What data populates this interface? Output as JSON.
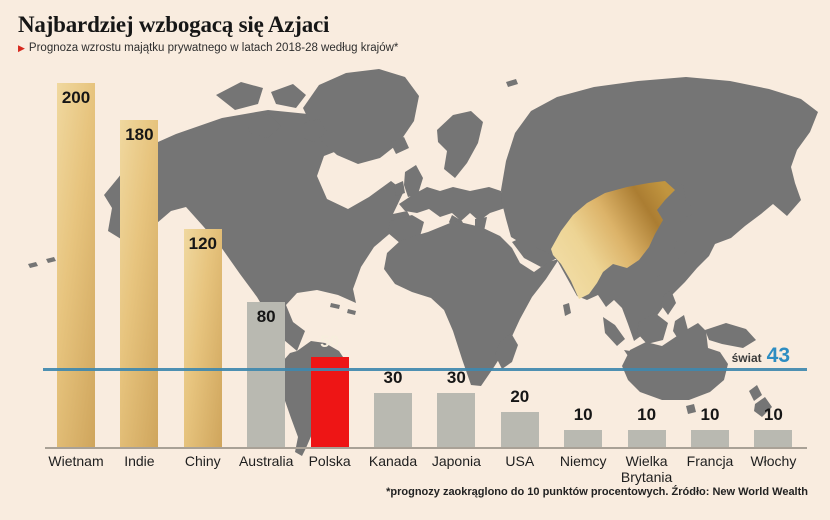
{
  "header": {
    "title": "Najbardziej wzbogacą się Azjaci",
    "subtitle": "Prognoza wzrostu majątku prywatnego w latach 2018-28 według krajów*",
    "bullet_glyph": "▶"
  },
  "footnote": "*prognozy zaokrąglono do 10 punktów procentowych. Źródło: New World Wealth",
  "reference": {
    "label": "świat",
    "value": "43"
  },
  "chart_data": {
    "type": "bar",
    "title": "Najbardziej wzbogacą się Azjaci",
    "subtitle": "Prognoza wzrostu majątku prywatnego w latach 2018-28 według krajów*",
    "categories": [
      "Wietnam",
      "Indie",
      "Chiny",
      "Australia",
      "Polska",
      "Kanada",
      "Japonia",
      "USA",
      "Niemcy",
      "Wielka Brytania",
      "Francja",
      "Włochy"
    ],
    "values": [
      200,
      180,
      120,
      80,
      50,
      30,
      30,
      20,
      10,
      10,
      10,
      10
    ],
    "bar_styles": [
      "gold",
      "gold",
      "gold",
      "gray",
      "red",
      "gray",
      "gray",
      "gray",
      "gray",
      "gray",
      "gray",
      "gray"
    ],
    "ylim": [
      0,
      200
    ],
    "grid": false,
    "legend": false,
    "reference_line": {
      "label": "świat",
      "value": 43
    },
    "highlighted_map_regions": [
      "Chiny",
      "Indie"
    ],
    "footnote": "*prognozy zaokrąglono do 10 punktów procentowych. Źródło: New World Wealth"
  },
  "colors": {
    "background": "#f9ecdf",
    "map_land": "#757575",
    "bar_gold_light": "#f0d89f",
    "bar_gold_dark": "#cfa55c",
    "bar_gray": "#b9b9b1",
    "bar_red": "#ee1515",
    "reference_line_blue": "#3f88ae",
    "reference_value_blue": "#2d8dc2",
    "subtitle_bullet_red": "#d6291e",
    "axis_line": "#a9a196"
  }
}
